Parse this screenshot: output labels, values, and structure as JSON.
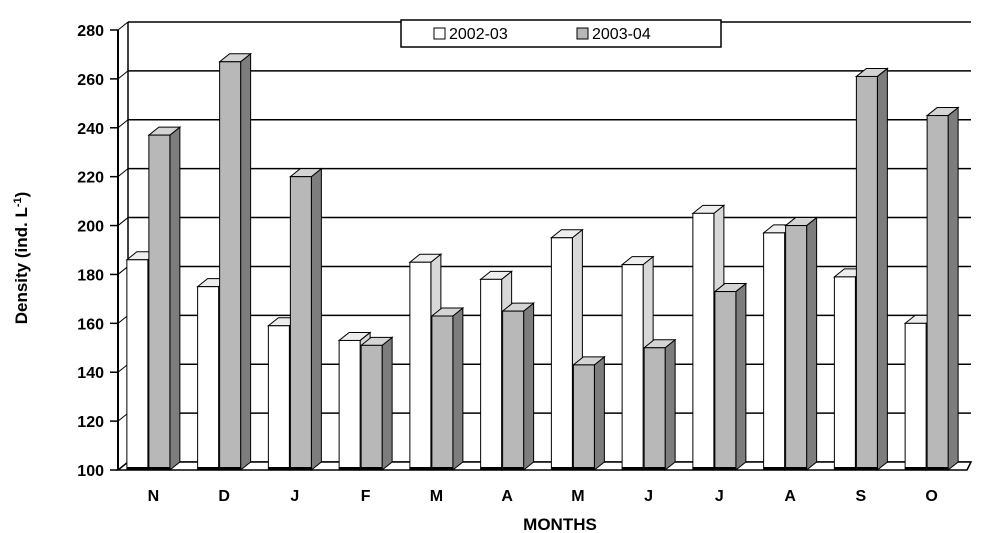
{
  "chart_data": {
    "type": "bar",
    "categories": [
      "N",
      "D",
      "J",
      "F",
      "M",
      "A",
      "M",
      "J",
      "J",
      "A",
      "S",
      "O"
    ],
    "series": [
      {
        "name": "2002-03",
        "values": [
          186,
          175,
          159,
          153,
          185,
          178,
          195,
          184,
          205,
          197,
          179,
          160
        ]
      },
      {
        "name": "2003-04",
        "values": [
          237,
          267,
          220,
          151,
          163,
          165,
          143,
          150,
          173,
          200,
          261,
          245
        ]
      }
    ],
    "xlabel": "MONTHS",
    "ylabel": "Density (ind. L",
    "ylabel_superscript": "-1",
    "ylabel_suffix": ")",
    "ylim": [
      100,
      280
    ],
    "yticks": [
      100,
      120,
      140,
      160,
      180,
      200,
      220,
      240,
      260,
      280
    ],
    "grid": true,
    "legend_position": "top-center",
    "colors": {
      "2002-03": "#ffffff",
      "2003-04": "#b8b8b8"
    }
  }
}
